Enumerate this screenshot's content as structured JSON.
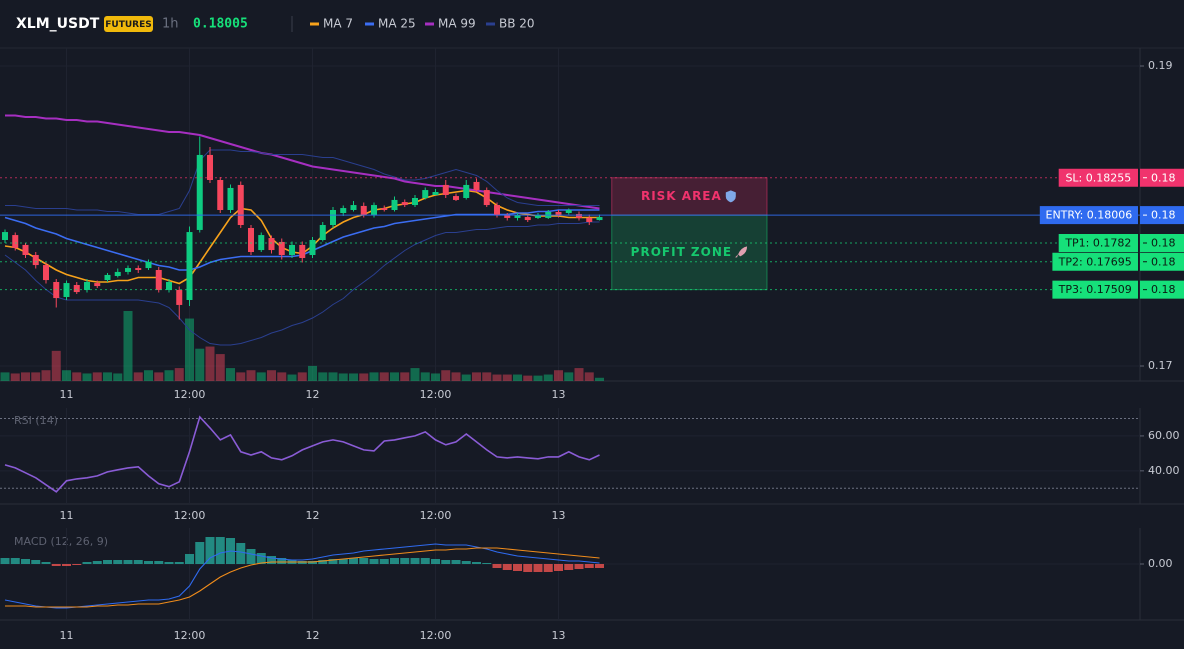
{
  "header": {
    "symbol": "XLM_USDT",
    "market": "FUTURES",
    "interval": "1h",
    "price": 0.18005
  },
  "chart_data": [
    {
      "type": "candlestick",
      "categories": [
        null,
        null,
        null,
        null,
        null,
        null,
        "11",
        null,
        null,
        null,
        null,
        null,
        null,
        null,
        null,
        null,
        null,
        null,
        "12:00",
        null,
        null,
        null,
        null,
        null,
        null,
        null,
        null,
        null,
        null,
        null,
        "12",
        null,
        null,
        null,
        null,
        null,
        null,
        null,
        null,
        null,
        null,
        null,
        "12:00",
        null,
        null,
        null,
        null,
        null,
        null,
        null,
        null,
        null,
        null,
        null,
        "13",
        null,
        null,
        null,
        null
      ],
      "open": [
        0.1784,
        0.17873,
        0.17807,
        0.1774,
        0.17673,
        0.1756,
        0.1746,
        0.1754,
        0.17507,
        0.17553,
        0.17573,
        0.176,
        0.17627,
        0.17653,
        0.17653,
        0.1764,
        0.17507,
        0.17507,
        0.1744,
        0.17907,
        0.18407,
        0.1824,
        0.1804,
        0.18207,
        0.1792,
        0.17773,
        0.17853,
        0.17827,
        0.1774,
        0.17807,
        0.1774,
        0.1784,
        0.1794,
        0.1802,
        0.1804,
        0.18067,
        0.18007,
        0.18053,
        0.1804,
        0.18093,
        0.18073,
        0.1812,
        0.1814,
        0.18207,
        0.18133,
        0.1812,
        0.18227,
        0.18173,
        0.18073,
        0.18007,
        0.17987,
        0.17993,
        0.17987,
        0.17987,
        0.18027,
        0.1802,
        0.18013,
        0.17987,
        0.17973
      ],
      "high": [
        0.1791,
        0.1789,
        0.1782,
        0.1776,
        0.1769,
        0.1758,
        0.1757,
        0.1756,
        0.1758,
        0.1757,
        0.1762,
        0.1765,
        0.1767,
        0.1767,
        0.1771,
        0.1766,
        0.1758,
        0.1753,
        0.1793,
        0.1853,
        0.1846,
        0.1826,
        0.1821,
        0.1823,
        0.1794,
        0.1789,
        0.1787,
        0.1785,
        0.1783,
        0.1783,
        0.1786,
        0.1796,
        0.1806,
        0.1807,
        0.181,
        0.1809,
        0.1809,
        0.1807,
        0.1813,
        0.1811,
        0.1814,
        0.1819,
        0.1818,
        0.1824,
        0.1815,
        0.1824,
        0.1825,
        0.1819,
        0.1809,
        0.1802,
        0.1802,
        0.1801,
        0.1802,
        0.1804,
        0.1804,
        0.1805,
        0.1803,
        0.1801,
        0.1801
      ],
      "low": [
        0.1782,
        0.1777,
        0.1772,
        0.1765,
        0.1755,
        0.1739,
        0.1744,
        0.1748,
        0.1749,
        0.1752,
        0.1756,
        0.1759,
        0.1761,
        0.1762,
        0.1764,
        0.1749,
        0.1749,
        0.1731,
        0.174,
        0.1789,
        0.1822,
        0.1802,
        0.1802,
        0.1792,
        0.1774,
        0.1776,
        0.1775,
        0.1771,
        0.1772,
        0.1769,
        0.1772,
        0.1783,
        0.1792,
        0.18,
        0.1803,
        0.1799,
        0.1799,
        0.1803,
        0.1803,
        0.1806,
        0.1806,
        0.1811,
        0.1814,
        0.1812,
        0.181,
        0.1811,
        0.1816,
        0.1806,
        0.1799,
        0.1797,
        0.1797,
        0.1796,
        0.1798,
        0.1798,
        0.1799,
        0.1801,
        0.1797,
        0.1794,
        0.1797
      ],
      "close": [
        0.17893,
        0.17787,
        0.1774,
        0.17673,
        0.17573,
        0.17453,
        0.17553,
        0.17493,
        0.1756,
        0.17533,
        0.17607,
        0.17627,
        0.17653,
        0.1764,
        0.17693,
        0.17507,
        0.1756,
        0.17407,
        0.17893,
        0.18407,
        0.1824,
        0.1804,
        0.18187,
        0.1794,
        0.1776,
        0.17873,
        0.17773,
        0.1774,
        0.17807,
        0.1772,
        0.1784,
        0.1794,
        0.1804,
        0.18053,
        0.18073,
        0.18007,
        0.18073,
        0.1804,
        0.18107,
        0.18073,
        0.1812,
        0.18173,
        0.1816,
        0.1814,
        0.18107,
        0.18207,
        0.18173,
        0.18073,
        0.18007,
        0.17987,
        0.18007,
        0.17973,
        0.18007,
        0.18027,
        0.18007,
        0.1804,
        0.17987,
        0.1796,
        0.17993
      ],
      "volume": [
        8,
        7,
        8,
        8,
        10,
        28,
        10,
        8,
        7,
        8,
        8,
        7,
        65,
        8,
        10,
        8,
        10,
        12,
        58,
        30,
        32,
        25,
        12,
        8,
        10,
        8,
        10,
        8,
        6,
        8,
        14,
        8,
        8,
        7,
        7,
        7,
        8,
        8,
        8,
        8,
        12,
        8,
        7,
        10,
        8,
        6,
        8,
        8,
        6,
        6,
        6,
        5,
        5,
        6,
        10,
        8,
        12,
        8,
        3
      ],
      "up_color": "#0ecb81",
      "down_color": "#f6465d",
      "series": [
        {
          "name": "MA 7",
          "color": "#f7a21b",
          "values": [
            0.178,
            0.1779,
            0.1776,
            0.1772,
            0.1768,
            0.1764,
            0.1761,
            0.1759,
            0.1757,
            0.1756,
            0.1756,
            0.1757,
            0.1757,
            0.1759,
            0.1759,
            0.1759,
            0.1757,
            0.1755,
            0.1759,
            0.1769,
            0.1779,
            0.1789,
            0.1799,
            0.1805,
            0.1804,
            0.1797,
            0.1785,
            0.1779,
            0.1776,
            0.1775,
            0.178,
            0.1787,
            0.1792,
            0.1796,
            0.1799,
            0.1801,
            0.1804,
            0.1805,
            0.1807,
            0.1808,
            0.1809,
            0.1812,
            0.1814,
            0.1815,
            0.1816,
            0.1817,
            0.1816,
            0.1812,
            0.1807,
            0.1804,
            0.1802,
            0.1801,
            0.18,
            0.18,
            0.18,
            0.1799,
            0.1799,
            0.1799,
            0.1799
          ]
        },
        {
          "name": "MA 25",
          "color": "#3b6df2",
          "values": [
            0.1799,
            0.1797,
            0.1795,
            0.1792,
            0.179,
            0.1788,
            0.1785,
            0.1783,
            0.1781,
            0.1779,
            0.1777,
            0.1775,
            0.1773,
            0.1771,
            0.1769,
            0.1767,
            0.1766,
            0.1764,
            0.1764,
            0.1766,
            0.1769,
            0.1771,
            0.1772,
            0.1773,
            0.1773,
            0.1773,
            0.1773,
            0.1773,
            0.1773,
            0.1774,
            0.1777,
            0.178,
            0.1783,
            0.1786,
            0.1788,
            0.179,
            0.1792,
            0.1793,
            0.1795,
            0.1796,
            0.1797,
            0.1798,
            0.1799,
            0.18,
            0.1801,
            0.1801,
            0.1801,
            0.1801,
            0.1801,
            0.1801,
            0.1802,
            0.1802,
            0.1803,
            0.1803,
            0.1804,
            0.1804,
            0.1804,
            0.1804,
            0.1804
          ]
        },
        {
          "name": "MA 99",
          "color": "#a62fc1",
          "values": [
            0.1867,
            0.1867,
            0.1866,
            0.1866,
            0.1865,
            0.1865,
            0.1864,
            0.1864,
            0.1863,
            0.1863,
            0.1862,
            0.1861,
            0.186,
            0.1859,
            0.1858,
            0.1857,
            0.1856,
            0.1856,
            0.1855,
            0.1854,
            0.1852,
            0.185,
            0.1848,
            0.1846,
            0.1844,
            0.1842,
            0.1841,
            0.1839,
            0.1837,
            0.1835,
            0.1833,
            0.1832,
            0.1831,
            0.183,
            0.1829,
            0.1828,
            0.1827,
            0.1826,
            0.1825,
            0.1823,
            0.1822,
            0.1821,
            0.182,
            0.182,
            0.1819,
            0.1818,
            0.1817,
            0.1816,
            0.1815,
            0.1814,
            0.1813,
            0.1812,
            0.1811,
            0.181,
            0.1809,
            0.1808,
            0.1807,
            0.1806,
            0.1805
          ]
        },
        {
          "name": "BB 20",
          "color": "#2a3f8f",
          "upper": [
            0.1807,
            0.1807,
            0.1806,
            0.1805,
            0.1805,
            0.1805,
            0.1805,
            0.1804,
            0.1804,
            0.1804,
            0.1803,
            0.1803,
            0.1802,
            0.1801,
            0.1801,
            0.1801,
            0.1803,
            0.1805,
            0.1817,
            0.1837,
            0.1844,
            0.1844,
            0.1844,
            0.1843,
            0.1843,
            0.1842,
            0.1841,
            0.1841,
            0.1841,
            0.1841,
            0.184,
            0.1839,
            0.1839,
            0.1837,
            0.1835,
            0.1833,
            0.1831,
            0.1828,
            0.1826,
            0.1824,
            0.1824,
            0.1825,
            0.1827,
            0.1829,
            0.1831,
            0.1829,
            0.1827,
            0.1823,
            0.1817,
            0.1812,
            0.1809,
            0.1808,
            0.1807,
            0.1807,
            0.1807,
            0.1807,
            0.1807,
            0.1807,
            0.1807
          ],
          "lower": [
            0.1774,
            0.1769,
            0.1764,
            0.1757,
            0.1751,
            0.1746,
            0.1744,
            0.1744,
            0.1744,
            0.1744,
            0.1744,
            0.1744,
            0.1744,
            0.1744,
            0.1743,
            0.1742,
            0.1739,
            0.1732,
            0.1724,
            0.1719,
            0.1715,
            0.1714,
            0.1714,
            0.1715,
            0.1717,
            0.1719,
            0.1722,
            0.1724,
            0.1727,
            0.1729,
            0.1732,
            0.1736,
            0.1741,
            0.1745,
            0.1751,
            0.1756,
            0.1761,
            0.1767,
            0.1772,
            0.1777,
            0.1781,
            0.1784,
            0.1787,
            0.1789,
            0.1789,
            0.179,
            0.1791,
            0.1791,
            0.1792,
            0.1793,
            0.1793,
            0.1793,
            0.1794,
            0.1794,
            0.1795,
            0.1795,
            0.1795,
            0.1796,
            0.1796
          ]
        }
      ],
      "levels": [
        {
          "label": "SL: 0.18255",
          "value": 0.18255,
          "tag": "0.18",
          "color": "#f0336d",
          "style": "dotted"
        },
        {
          "label": "ENTRY: 0.18006",
          "value": 0.18006,
          "tag": "0.18",
          "color": "#2f6bf0",
          "style": "solid"
        },
        {
          "label": "TP1: 0.1782",
          "value": 0.1782,
          "tag": "0.18",
          "color": "#16e07a",
          "style": "dotted"
        },
        {
          "label": "TP2: 0.17695",
          "value": 0.17695,
          "tag": "0.18",
          "color": "#16e07a",
          "style": "dotted"
        },
        {
          "label": "TP3: 0.17509",
          "value": 0.17509,
          "tag": "0.18",
          "color": "#16e07a",
          "style": "dotted"
        }
      ],
      "zones": [
        {
          "label": "RISK AREA",
          "from": 0.18255,
          "to": 0.18006,
          "color": "#f0336d"
        },
        {
          "label": "PROFIT ZONE",
          "from": 0.18006,
          "to": 0.17509,
          "color": "#16c86e"
        }
      ],
      "ylim": [
        0.169,
        0.1912
      ],
      "yticks": [
        0.19,
        0.17
      ],
      "grid": true
    },
    {
      "type": "line",
      "title": "RSI (14)",
      "color": "#8a5cd6",
      "values": [
        43.4,
        41.7,
        38.9,
        36,
        32,
        28,
        34.3,
        35.4,
        36,
        37.1,
        39.4,
        40.6,
        41.7,
        42.3,
        37.1,
        32.6,
        30.9,
        33.7,
        50.9,
        70.9,
        64.6,
        57.7,
        60.6,
        50.9,
        49.1,
        50.9,
        47.4,
        46.3,
        48.6,
        52,
        54.3,
        56.6,
        57.7,
        56.6,
        54.3,
        52,
        51.4,
        57.1,
        57.7,
        58.9,
        60,
        62.3,
        57.7,
        54.9,
        56.6,
        61.1,
        56.6,
        52,
        48,
        47.4,
        48,
        47.4,
        46.9,
        48,
        48,
        50.9,
        48,
        46.3,
        49.1
      ],
      "levels": [
        70,
        30
      ],
      "ylim": [
        21,
        76
      ],
      "yticks": [
        {
          "value": 60,
          "label": "60.00"
        },
        {
          "value": 40,
          "label": "40.00"
        }
      ]
    },
    {
      "type": "macd",
      "title": "MACD (12, 26, 9)",
      "histogram": [
        6e-05,
        6e-05,
        5e-05,
        4e-05,
        2e-05,
        -2e-05,
        -2e-05,
        -1e-05,
        2e-05,
        3e-05,
        4e-05,
        4e-05,
        4e-05,
        4e-05,
        3e-05,
        3e-05,
        2e-05,
        2e-05,
        0.0001,
        0.00022,
        0.00027,
        0.00027,
        0.00026,
        0.00021,
        0.00015,
        0.00011,
        8e-05,
        6e-05,
        4e-05,
        3e-05,
        3e-05,
        4e-05,
        5e-05,
        5e-05,
        6e-05,
        6e-05,
        5e-05,
        5e-05,
        6e-05,
        6e-05,
        6e-05,
        6e-05,
        5e-05,
        4e-05,
        4e-05,
        3e-05,
        2e-05,
        1e-05,
        -4e-05,
        -6e-05,
        -7e-05,
        -8e-05,
        -8e-05,
        -8e-05,
        -7e-05,
        -6e-05,
        -5e-05,
        -4e-05,
        -4e-05
      ],
      "positive_color": "#26a69a",
      "negative_color": "#ef5350",
      "series": [
        {
          "color": "#2f6bf0",
          "values": [
            -0.00036,
            -0.00038,
            -0.0004,
            -0.00042,
            -0.00043,
            -0.00044,
            -0.00044,
            -0.00043,
            -0.00042,
            -0.00041,
            -0.0004,
            -0.00039,
            -0.00038,
            -0.00037,
            -0.00036,
            -0.00036,
            -0.00035,
            -0.00032,
            -0.00022,
            -5e-05,
            6e-05,
            0.00011,
            0.00013,
            0.00012,
            0.0001,
            8e-05,
            6e-05,
            5e-05,
            4e-05,
            4e-05,
            5e-05,
            7e-05,
            9e-05,
            0.0001,
            0.00011,
            0.00013,
            0.00014,
            0.00015,
            0.00016,
            0.00017,
            0.00018,
            0.00019,
            0.0002,
            0.00019,
            0.00019,
            0.00019,
            0.00017,
            0.00015,
            0.00012,
            0.0001,
            8e-05,
            7e-05,
            6e-05,
            5e-05,
            4e-05,
            3e-05,
            3e-05,
            2e-05,
            1e-05
          ]
        },
        {
          "color": "#f08c1b",
          "values": [
            -0.00042,
            -0.00042,
            -0.00042,
            -0.00043,
            -0.00043,
            -0.00043,
            -0.00043,
            -0.00043,
            -0.00043,
            -0.00042,
            -0.00042,
            -0.00041,
            -0.00041,
            -0.0004,
            -0.0004,
            -0.0004,
            -0.00038,
            -0.00036,
            -0.00033,
            -0.00027,
            -0.0002,
            -0.00013,
            -8e-05,
            -4e-05,
            -1e-05,
            1e-05,
            2e-05,
            2e-05,
            2e-05,
            2e-05,
            2e-05,
            3e-05,
            4e-05,
            5e-05,
            6e-05,
            7e-05,
            8e-05,
            9e-05,
            0.0001,
            0.00011,
            0.00012,
            0.00013,
            0.00014,
            0.00014,
            0.00015,
            0.00015,
            0.00016,
            0.00016,
            0.00016,
            0.00015,
            0.00014,
            0.00013,
            0.00012,
            0.00011,
            0.0001,
            9e-05,
            8e-05,
            7e-05,
            6e-05
          ]
        }
      ],
      "ylim": [
        -0.00056,
        0.00036
      ],
      "yticks": [
        {
          "value": 0,
          "label": "0.00"
        }
      ]
    }
  ]
}
